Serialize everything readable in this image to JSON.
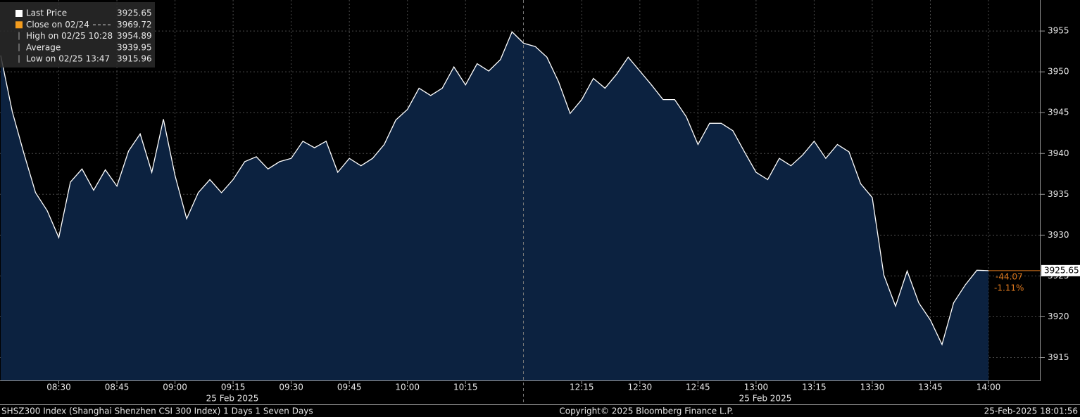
{
  "chart_data": {
    "type": "area",
    "series": [
      {
        "name": "Last Price",
        "color": "#ffffff",
        "fill": "#0c2240",
        "values": [
          3952,
          3945.1,
          3940,
          3935.2,
          3933,
          3929.7,
          3936.5,
          3938.1,
          3935.5,
          3938,
          3936,
          3940.3,
          3942.4,
          3937.7,
          3944.2,
          3937.3,
          3932,
          3935.2,
          3936.8,
          3935.2,
          3936.8,
          3939,
          3939.6,
          3938.1,
          3939,
          3939.4,
          3941.5,
          3940.7,
          3941.5,
          3937.7,
          3939.4,
          3938.5,
          3939.4,
          3941.1,
          3944.1,
          3945.4,
          3948,
          3947.1,
          3948,
          3950.6,
          3948.4,
          3951,
          3950.1,
          3951.5,
          3954.9,
          3953.5,
          3953.1,
          3951.8,
          3948.8,
          3944.9,
          3946.6,
          3949.2,
          3948,
          3949.7,
          3951.8,
          3950.1,
          3948.4,
          3946.6,
          3946.6,
          3944.5,
          3941.1,
          3943.7,
          3943.7,
          3942.8,
          3940.2,
          3937.7,
          3936.8,
          3939.4,
          3938.5,
          3939.8,
          3941.5,
          3939.4,
          3941.1,
          3940.2,
          3936.3,
          3934.6,
          3925.1,
          3921.3,
          3925.6,
          3921.7,
          3919.6,
          3916.6,
          3921.7,
          3923.9,
          3925.7,
          3925.65
        ]
      }
    ],
    "categories": [
      null,
      null,
      null,
      null,
      null,
      "08:30",
      null,
      null,
      null,
      null,
      "08:45",
      null,
      null,
      null,
      null,
      "09:00",
      null,
      null,
      null,
      null,
      "09:15",
      null,
      null,
      null,
      null,
      "09:30",
      null,
      null,
      null,
      null,
      "09:45",
      null,
      null,
      null,
      null,
      "10:00",
      null,
      null,
      null,
      null,
      "10:15",
      null,
      null,
      null,
      null,
      null,
      null,
      null,
      null,
      null,
      "12:15",
      null,
      null,
      null,
      null,
      "12:30",
      null,
      null,
      null,
      null,
      "12:45",
      null,
      null,
      null,
      null,
      "13:00",
      null,
      null,
      null,
      null,
      "13:15",
      null,
      null,
      null,
      null,
      "13:30",
      null,
      null,
      null,
      null,
      "13:45",
      null,
      null,
      null,
      null,
      "14:00"
    ],
    "date_labels": [
      "25 Feb 2025",
      "25 Feb 2025"
    ],
    "ylim": [
      3912.2,
      3958.8
    ],
    "yticks": [
      3915,
      3920,
      3925,
      3930,
      3935,
      3940,
      3945,
      3950,
      3955
    ],
    "grid": true,
    "legend": [
      {
        "label": "Last Price",
        "value": 3925.65
      },
      {
        "label": "Close on 02/24",
        "value": 3969.72
      },
      {
        "label": "High on 02/25 10:28",
        "value": 3954.89
      },
      {
        "label": "Average",
        "value": 3939.95
      },
      {
        "label": "Low on 02/25 13:47",
        "value": 3915.96
      }
    ],
    "change_labels": [
      "-44.07",
      "-1.11%"
    ],
    "footer": {
      "left": "SHSZ300 Index (Shanghai Shenzhen CSI 300 Index) 1 Days 1 Seven Days",
      "center": "Copyright© 2025 Bloomberg Finance L.P.",
      "right": "25-Feb-2025 18:01:56"
    }
  }
}
